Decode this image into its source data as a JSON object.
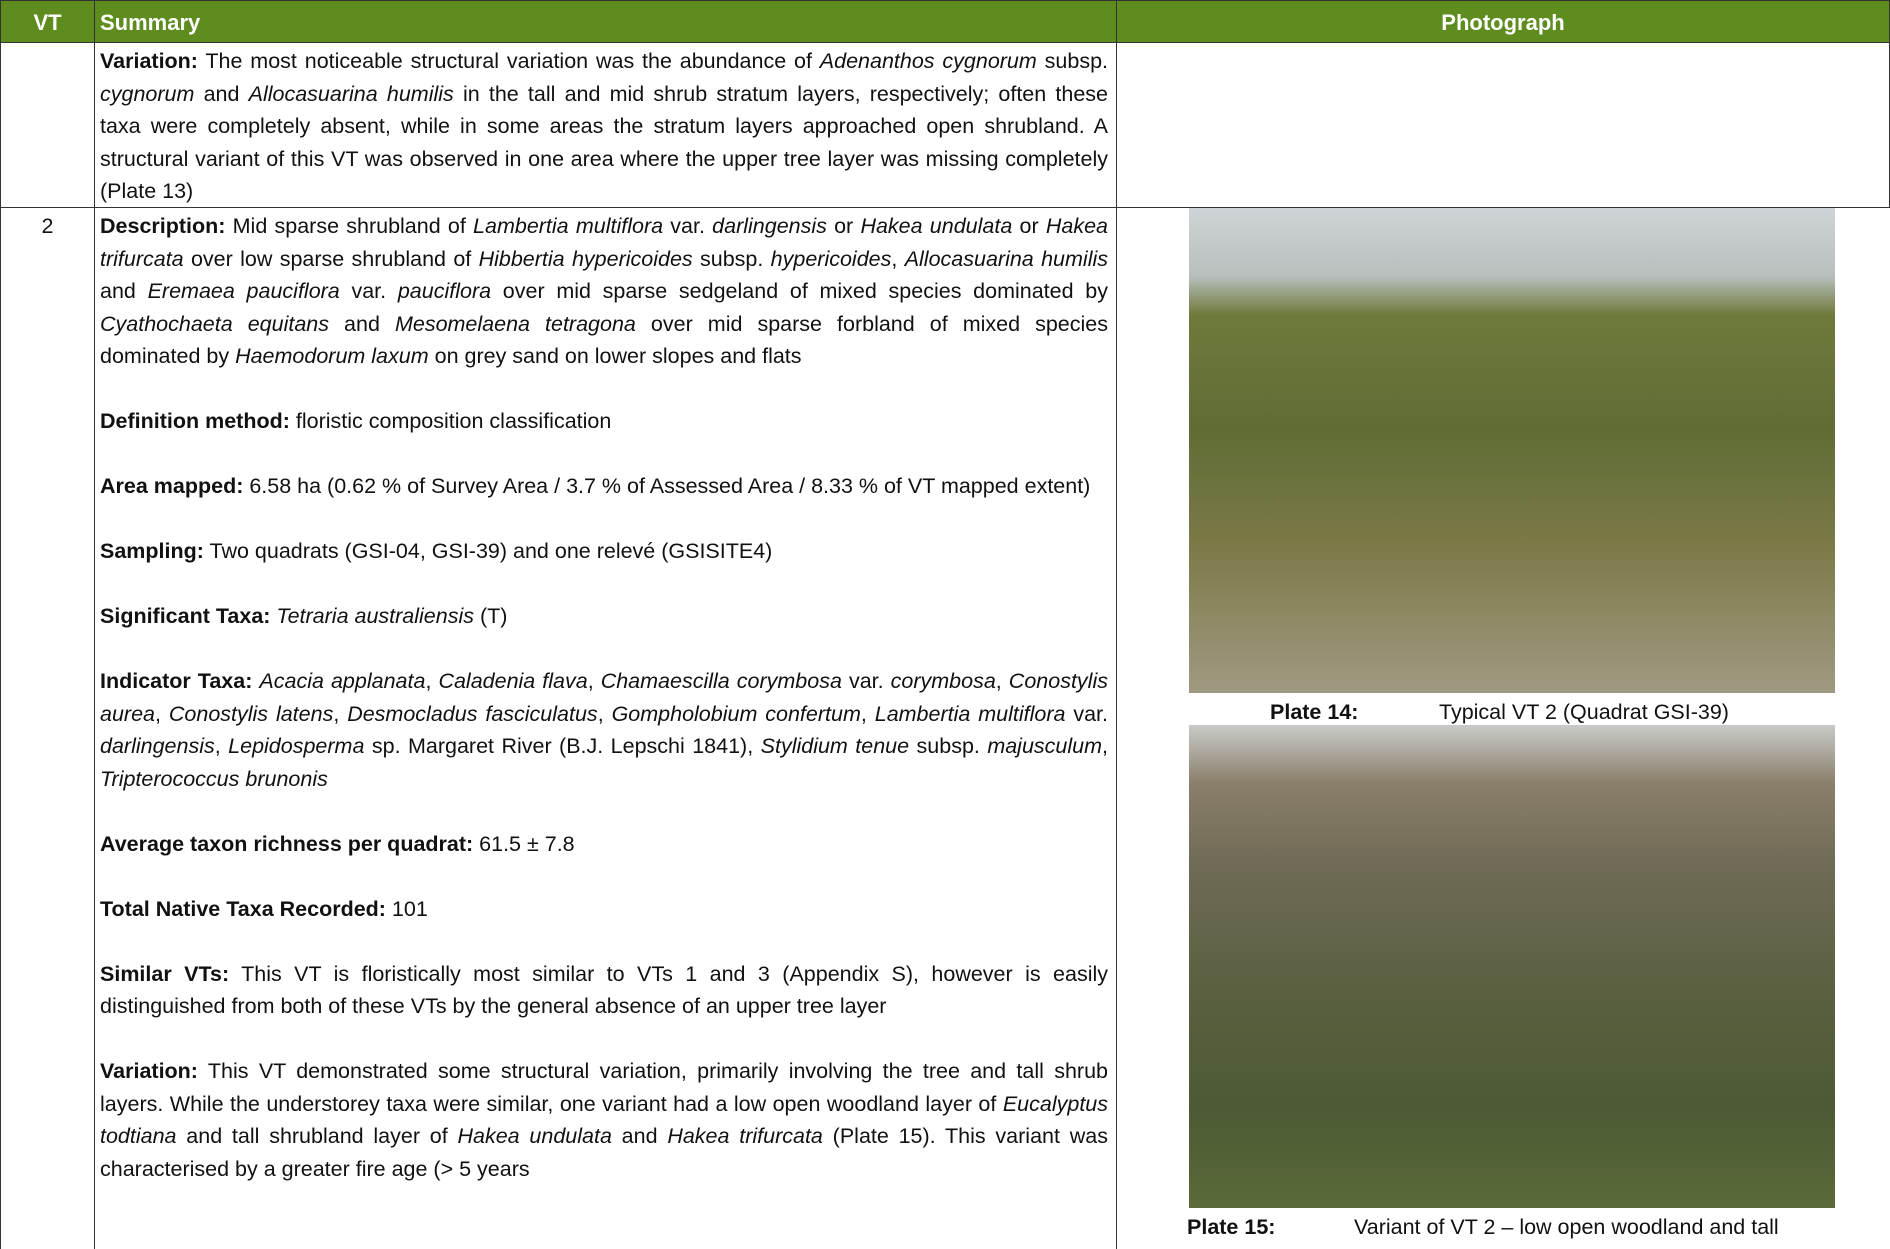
{
  "header": {
    "vt": "VT",
    "summary": "Summary",
    "photograph": "Photograph"
  },
  "rows": [
    {
      "vt": null,
      "paragraphs": [
        {
          "label": "Variation:",
          "runs": [
            " The most noticeable structural variation was the abundance of ",
            "Adenanthos cygnorum",
            " subsp. ",
            "cygnorum",
            " and ",
            "Allocasuarina humilis",
            " in the tall and mid shrub stratum layers, respectively; often these taxa were completely absent, while in some areas the stratum layers approached open shrubland. A structural variant of this VT was observed in one area where the upper tree layer was missing completely (Plate 13)"
          ]
        }
      ]
    },
    {
      "vt": "2",
      "paragraphs": [
        {
          "label": "Description:",
          "runs": [
            " Mid sparse shrubland of ",
            "Lambertia multiflora",
            " var. ",
            "darlingensis",
            " or ",
            "Hakea undulata",
            " or ",
            "Hakea trifurcata",
            " over low sparse shrubland of ",
            "Hibbertia hypericoides",
            " subsp. ",
            "hypericoides",
            ", ",
            "Allocasuarina humilis",
            " and ",
            "Eremaea pauciflora",
            " var. ",
            "pauciflora",
            " over mid sparse sedgeland of mixed species dominated by ",
            "Cyathochaeta equitans",
            " and ",
            "Mesomelaena tetragona",
            " over mid sparse forbland of mixed species dominated by ",
            "Haemodorum laxum",
            " on grey sand on lower slopes and flats"
          ]
        },
        {
          "label": "Definition method:",
          "runs": [
            " floristic composition classification"
          ]
        },
        {
          "label": "Area mapped:",
          "runs": [
            " 6.58 ha (0.62 % of Survey Area / 3.7 % of Assessed Area / 8.33 % of VT mapped extent)"
          ]
        },
        {
          "label": "Sampling:",
          "runs": [
            " Two quadrats (GSI-04, GSI-39) and one relevé (GSISITE4)"
          ]
        },
        {
          "label": "Significant Taxa:",
          "runs": [
            " ",
            "Tetraria australiensis",
            " (T)"
          ]
        },
        {
          "label": "Indicator Taxa:",
          "runs": [
            " ",
            "Acacia applanata",
            ", ",
            "Caladenia flava",
            ", ",
            "Chamaescilla corymbosa",
            " var. ",
            "corymbosa",
            ", ",
            "Conostylis aurea",
            ", ",
            "Conostylis latens",
            ", ",
            "Desmocladus fasciculatus",
            ", ",
            "Gompholobium confertum",
            ", ",
            "Lambertia multiflora",
            " var. ",
            "darlingensis",
            ", ",
            "Lepidosperma",
            " sp. Margaret River (B.J. Lepschi 1841), ",
            "Stylidium tenue",
            " subsp. ",
            "majusculum",
            ", ",
            "Tripterococcus brunonis"
          ]
        },
        {
          "label": "Average taxon richness per quadrat:",
          "runs": [
            " 61.5 ± 7.8"
          ]
        },
        {
          "label": "Total Native Taxa Recorded:",
          "runs": [
            " 101"
          ]
        },
        {
          "label": "Similar VTs:",
          "runs": [
            " This VT is floristically most similar to VTs 1 and 3 (Appendix S), however is easily distinguished from both of these VTs by the general absence of an upper tree layer"
          ]
        },
        {
          "label": "Variation:",
          "runs": [
            " This VT demonstrated some structural variation, primarily involving the tree and tall shrub layers. While the understorey taxa were similar, one variant had a low open woodland layer of ",
            "Eucalyptus todtiana",
            " and tall shrubland layer of ",
            "Hakea undulata",
            " and ",
            "Hakea trifurcata",
            " (Plate 15). This variant was characterised by a greater fire age (> 5 years"
          ]
        }
      ],
      "plates": [
        {
          "label": "Plate 14:",
          "caption": "Typical VT 2 (Quadrat GSI-39)"
        },
        {
          "label": "Plate 15:",
          "caption": "Variant of VT 2 – low open woodland and tall"
        }
      ]
    }
  ]
}
